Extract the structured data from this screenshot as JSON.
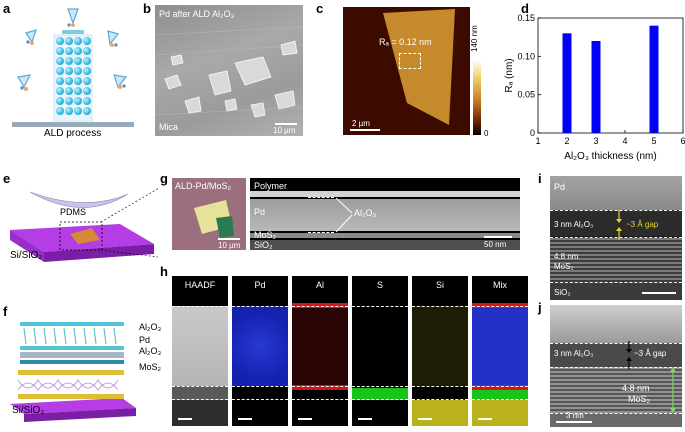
{
  "panels": {
    "a": {
      "label": "a",
      "caption": "ALD process"
    },
    "b": {
      "label": "b",
      "title": "Pd after ALD Al₂O₃",
      "substrate": "Mica",
      "scale": "10 µm"
    },
    "c": {
      "label": "c",
      "roughness": "Rₐ = 0.12 nm",
      "scale": "2 µm",
      "colorbar_top": "140 nm",
      "colorbar_bottom": "0"
    },
    "d": {
      "label": "d"
    },
    "e": {
      "label": "e",
      "stamp": "PDMS",
      "substrate": "Si/SiO₂"
    },
    "f": {
      "label": "f",
      "layers": [
        "Al₂O₃",
        "Pd",
        "Al₂O₃",
        "MoS₂"
      ],
      "substrate": "Si/SiO₂"
    },
    "g": {
      "label": "g",
      "optical_title": "ALD-Pd/MoS₂",
      "optical_scale": "10 µm",
      "layers": [
        "Polymer",
        "Pd",
        "MoS₂",
        "SiO₂"
      ],
      "annotation": "Al₂O₃",
      "scale": "50 nm"
    },
    "h": {
      "label": "h",
      "maps": [
        "HAADF",
        "Pd",
        "Al",
        "S",
        "Si",
        "Mix"
      ]
    },
    "i": {
      "label": "i",
      "top": "Pd",
      "oxide": "3 nm Al₂O₃",
      "gap": "~3 Å gap",
      "mos2_a": "4.8 nm",
      "mos2_b": "MoS₂",
      "bottom": "SiO₂"
    },
    "j": {
      "label": "j",
      "oxide": "3 nm Al₂O₃",
      "gap": "~3 Å gap",
      "mos2_a": "4.8 nm",
      "mos2_b": "MoS₂",
      "scale": "3 nm"
    }
  },
  "colors": {
    "bar": "#0000ff",
    "pd_map": "#1b2bd8",
    "al_map": "#c41515",
    "s_map": "#19c619",
    "si_map": "#c9c21a"
  },
  "chart_data": {
    "type": "bar",
    "x": [
      2,
      3,
      5
    ],
    "values": [
      0.13,
      0.12,
      0.14
    ],
    "xlabel": "Al₂O₃ thickness (nm)",
    "ylabel": "Rₐ (nm)",
    "xlim": [
      1,
      6
    ],
    "ylim": [
      0,
      0.15
    ],
    "xticks": [
      "1",
      "2",
      "3",
      "4",
      "5",
      "6"
    ],
    "yticks": [
      "0",
      "0.05",
      "0.10",
      "0.15"
    ]
  }
}
